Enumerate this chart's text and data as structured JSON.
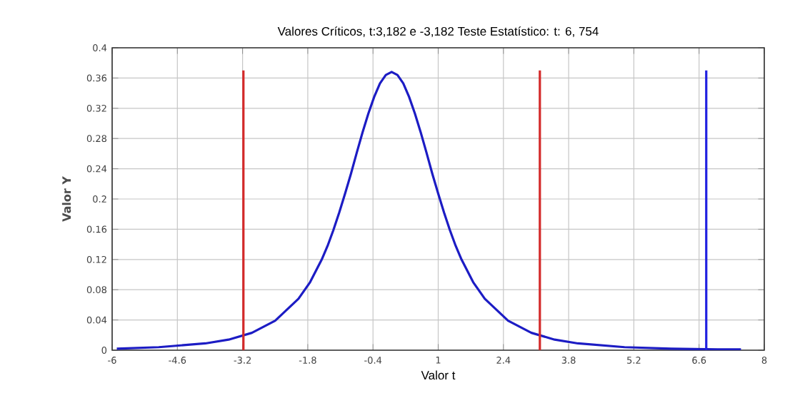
{
  "chart_data": {
    "type": "line",
    "title": "Valores Críticos, t:3,182 e -3,182  Teste Estatístico: t: 6, 754",
    "xlabel": "Valor t",
    "ylabel": "Valor Y",
    "xlim": [
      -6,
      8
    ],
    "ylim": [
      0,
      0.4
    ],
    "xticks": [
      -6,
      -4.6,
      -3.2,
      -1.8,
      -0.4,
      1,
      2.4,
      3.8,
      5.2,
      6.6,
      8
    ],
    "yticks": [
      0,
      0.04,
      0.08,
      0.12,
      0.16,
      0.2,
      0.24,
      0.28,
      0.32,
      0.36,
      0.4
    ],
    "grid": true,
    "marker": "none",
    "line_style": "solid",
    "series": [
      {
        "color": "#1c1cc4",
        "x": [
          -5.9,
          -5,
          -4,
          -3.5,
          -3,
          -2.5,
          -2,
          -1.75,
          -1.5,
          -1.375,
          -1.25,
          -1.125,
          -1,
          -0.875,
          -0.75,
          -0.625,
          -0.5,
          -0.375,
          -0.25,
          -0.125,
          0,
          0.125,
          0.25,
          0.375,
          0.5,
          0.625,
          0.75,
          0.875,
          1,
          1.125,
          1.25,
          1.375,
          1.5,
          1.75,
          2,
          2.5,
          3,
          3.5,
          4,
          5,
          6,
          7,
          7.5
        ],
        "values": [
          0.002,
          0.004,
          0.009,
          0.014,
          0.023,
          0.039,
          0.068,
          0.09,
          0.12,
          0.138,
          0.159,
          0.182,
          0.207,
          0.233,
          0.261,
          0.288,
          0.313,
          0.335,
          0.353,
          0.364,
          0.368,
          0.364,
          0.353,
          0.335,
          0.313,
          0.288,
          0.261,
          0.233,
          0.207,
          0.182,
          0.159,
          0.138,
          0.12,
          0.09,
          0.068,
          0.039,
          0.023,
          0.014,
          0.009,
          0.004,
          0.002,
          0.001,
          0.001
        ]
      },
      {
        "color": "#d42a2a",
        "x": [
          -3.182,
          -3.182
        ],
        "values": [
          0,
          0.37
        ]
      },
      {
        "color": "#d42a2a",
        "x": [
          3.182,
          3.182
        ],
        "values": [
          0,
          0.37
        ]
      },
      {
        "color": "#2020e0",
        "x": [
          6.754,
          6.754
        ],
        "values": [
          0,
          0.37
        ]
      }
    ]
  }
}
